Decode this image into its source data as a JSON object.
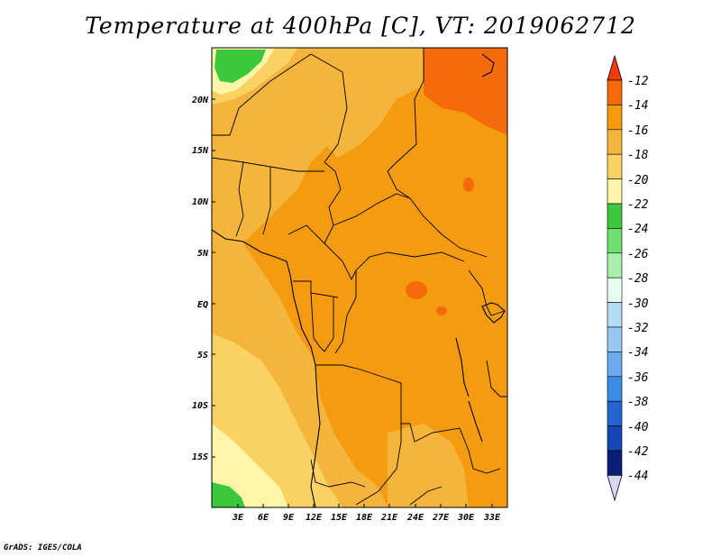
{
  "title": "Temperature at 400hPa [C], VT: 2019062712",
  "credit": "GrADS: IGES/COLA",
  "map": {
    "lat_labels": [
      "20N",
      "15N",
      "10N",
      "5N",
      "EQ",
      "5S",
      "10S",
      "15S"
    ],
    "lon_labels": [
      "3E",
      "6E",
      "9E",
      "12E",
      "15E",
      "18E",
      "21E",
      "24E",
      "27E",
      "30E",
      "33E"
    ]
  },
  "colorbar": {
    "labels": [
      "-12",
      "-14",
      "-16",
      "-18",
      "-20",
      "-22",
      "-24",
      "-26",
      "-28",
      "-30",
      "-32",
      "-34",
      "-36",
      "-38",
      "-40",
      "-42",
      "-44"
    ],
    "colors": [
      "#f03c0a",
      "#f56a0a",
      "#f59b0f",
      "#f5b43c",
      "#fad264",
      "#fff5a8",
      "#3cc83c",
      "#6ee06e",
      "#aaf0aa",
      "#e6fff0",
      "#b4dcf5",
      "#96c8f0",
      "#6eaaf0",
      "#3c8ce6",
      "#2364d2",
      "#1446b4",
      "#0a1e78",
      "#d8d8f5"
    ]
  }
}
